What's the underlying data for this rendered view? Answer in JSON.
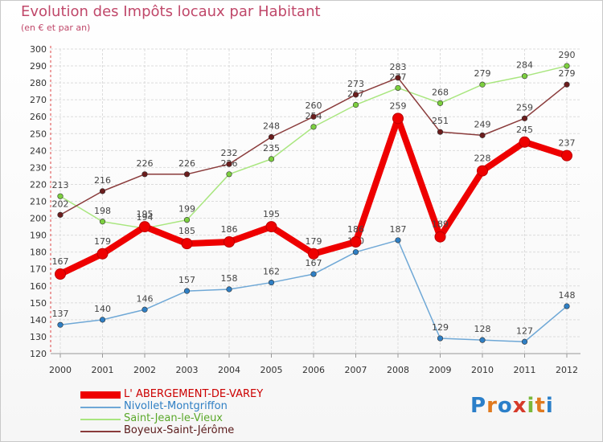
{
  "title": "Evolution des Impôts locaux par Habitant",
  "subtitle": "(en € et par an)",
  "logo": {
    "text": "Proxiti",
    "letters": [
      "P",
      "r",
      "o",
      "x",
      "i",
      "t",
      "i"
    ],
    "colors": [
      "#2b7fc9",
      "#e07a1f",
      "#2b7fc9",
      "#d63a2a",
      "#7ab83a",
      "#e07a1f",
      "#2b7fc9"
    ]
  },
  "chart_data": {
    "type": "line",
    "title": "Evolution des Impôts locaux par Habitant",
    "subtitle": "(en € et par an)",
    "xlabel": "",
    "ylabel": "",
    "ylim": [
      120,
      300
    ],
    "ytick_step": 10,
    "x": [
      "2000",
      "2001",
      "2002",
      "2003",
      "2004",
      "2005",
      "2006",
      "2007",
      "2008",
      "2009",
      "2010",
      "2011",
      "2012"
    ],
    "grid": true,
    "legend_position": "bottom-left",
    "series": [
      {
        "name": "L' ABERGEMENT-DE-VAREY",
        "color": "#ee0000",
        "marker": "#ee0000",
        "width": 8,
        "values": [
          167,
          179,
          195,
          185,
          186,
          195,
          179,
          186,
          259,
          189,
          228,
          245,
          237
        ],
        "labels": [
          "167",
          "179",
          "195",
          "185",
          "186",
          "195",
          "179",
          "186",
          "259",
          "189",
          "228",
          "245",
          "237"
        ]
      },
      {
        "name": "Nivollet-Montgriffon",
        "color": "#6fa8d6",
        "marker": "#2f7fc4",
        "width": 1.5,
        "values": [
          137,
          140,
          146,
          157,
          158,
          162,
          167,
          180,
          187,
          129,
          128,
          127,
          148
        ],
        "labels": [
          "137",
          "140",
          "146",
          "157",
          "158",
          "162",
          "167",
          "180",
          "187",
          "129",
          "128",
          "127",
          "148"
        ]
      },
      {
        "name": "Saint-Jean-le-Vieux",
        "color": "#a9e67f",
        "marker": "#7ccf3f",
        "width": 1.5,
        "values": [
          213,
          198,
          194,
          199,
          226,
          235,
          254,
          267,
          277,
          268,
          279,
          284,
          290
        ],
        "labels": [
          "213",
          "198",
          "194",
          "199",
          "226",
          "235",
          "254",
          "267",
          "277",
          "268",
          "279",
          "284",
          "290"
        ]
      },
      {
        "name": "Boyeux-Saint-Jérôme",
        "color": "#8a3b3b",
        "marker": "#6b1d1d",
        "width": 1.5,
        "values": [
          202,
          216,
          226,
          226,
          232,
          248,
          260,
          273,
          283,
          251,
          249,
          259,
          279
        ],
        "labels": [
          "202",
          "216",
          "226",
          "226",
          "232",
          "248",
          "260",
          "273",
          "283",
          "251",
          "249",
          "259",
          "279"
        ]
      }
    ]
  }
}
